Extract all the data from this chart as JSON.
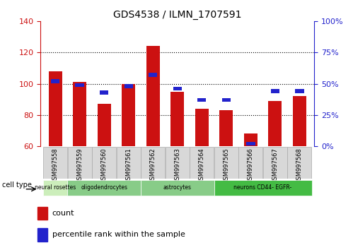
{
  "title": "GDS4538 / ILMN_1707591",
  "samples": [
    "GSM997558",
    "GSM997559",
    "GSM997560",
    "GSM997561",
    "GSM997562",
    "GSM997563",
    "GSM997564",
    "GSM997565",
    "GSM997566",
    "GSM997567",
    "GSM997568"
  ],
  "count_values": [
    108,
    101,
    87,
    100,
    124,
    95,
    84,
    83,
    68,
    89,
    92
  ],
  "percentile_values": [
    52,
    49,
    43,
    48,
    57,
    46,
    37,
    37,
    2,
    44,
    44
  ],
  "ylim_left": [
    60,
    140
  ],
  "ylim_right": [
    0,
    100
  ],
  "yticks_left": [
    60,
    80,
    100,
    120,
    140
  ],
  "ytick_labels_right": [
    "0%",
    "25%",
    "50%",
    "75%",
    "100%"
  ],
  "bar_color_red": "#cc1111",
  "bar_color_blue": "#2222cc",
  "group_labels": [
    "neural rosettes",
    "oligodendrocytes",
    "astrocytes",
    "neurons CD44- EGFR-"
  ],
  "group_starts": [
    0,
    1,
    4,
    7
  ],
  "group_ends": [
    1,
    4,
    7,
    11
  ],
  "group_colors": [
    "#cceebb",
    "#88cc88",
    "#88cc88",
    "#44bb44"
  ],
  "legend_count_label": "count",
  "legend_percentile_label": "percentile rank within the sample",
  "cell_type_label": "cell type",
  "bar_width": 0.55,
  "base_value": 60,
  "background_color": "#ffffff"
}
